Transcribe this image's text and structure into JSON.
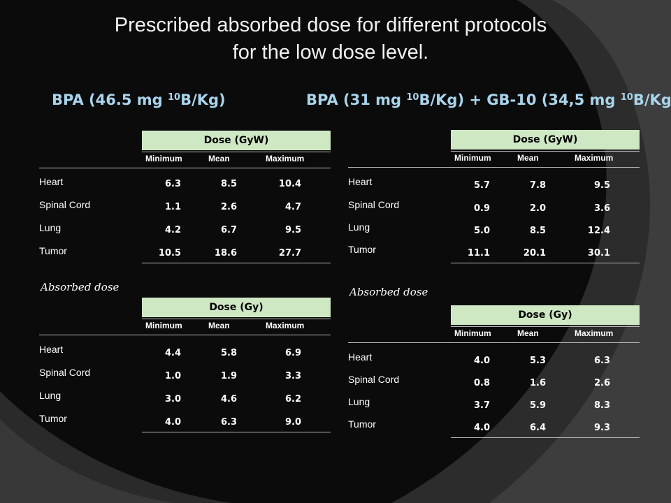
{
  "slide": {
    "title_line1": "Prescribed absorbed dose for different protocols",
    "title_line2": "for the low dose level.",
    "left_heading": {
      "pre": "BPA (46.5 mg ",
      "sup": "10",
      "post": "B/Kg)"
    },
    "right_heading": {
      "pre1": "BPA (31 mg ",
      "sup1": "10",
      "mid": "B/Kg) + GB-10 (34,5 mg ",
      "sup2": "10",
      "post": "B/Kg)"
    },
    "caption": "Absorbed dose",
    "columns": [
      "Minimum",
      "Mean",
      "Maximum"
    ],
    "organs": [
      "Heart",
      "Spinal Cord",
      "Lung",
      "Tumor"
    ],
    "colors": {
      "header_fill": "#cfe8c4",
      "heading_text": "#a9d4ec"
    }
  },
  "tables": {
    "left_weighted": {
      "header": "Dose (GyW)",
      "rows": [
        [
          "6.3",
          "8.5",
          "10.4"
        ],
        [
          "1.1",
          "2.6",
          "4.7"
        ],
        [
          "4.2",
          "6.7",
          "9.5"
        ],
        [
          "10.5",
          "18.6",
          "27.7"
        ]
      ]
    },
    "left_absorbed": {
      "header": "Dose (Gy)",
      "rows": [
        [
          "4.4",
          "5.8",
          "6.9"
        ],
        [
          "1.0",
          "1.9",
          "3.3"
        ],
        [
          "3.0",
          "4.6",
          "6.2"
        ],
        [
          "4.0",
          "6.3",
          "9.0"
        ]
      ]
    },
    "right_weighted": {
      "header": "Dose (GyW)",
      "rows": [
        [
          "5.7",
          "7.8",
          "9.5"
        ],
        [
          "0.9",
          "2.0",
          "3.6"
        ],
        [
          "5.0",
          "8.5",
          "12.4"
        ],
        [
          "11.1",
          "20.1",
          "30.1"
        ]
      ]
    },
    "right_absorbed": {
      "header": "Dose (Gy)",
      "rows": [
        [
          "4.0",
          "5.3",
          "6.3"
        ],
        [
          "0.8",
          "1.6",
          "2.6"
        ],
        [
          "3.7",
          "5.9",
          "8.3"
        ],
        [
          "4.0",
          "6.4",
          "9.3"
        ]
      ]
    }
  }
}
